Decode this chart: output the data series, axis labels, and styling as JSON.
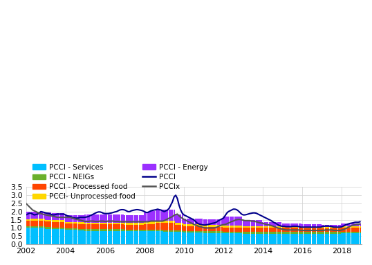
{
  "ylim": [
    0.0,
    3.5
  ],
  "yticks": [
    0.0,
    0.5,
    1.0,
    1.5,
    2.0,
    2.5,
    3.0,
    3.5
  ],
  "colors": {
    "services": "#00BFFF",
    "neigs": "#6AB02C",
    "processed_food": "#FF4500",
    "unprocessed_food": "#FFD700",
    "energy": "#9B30FF",
    "pcci": "#00008B",
    "pccix": "#555555"
  },
  "start_year": 2002,
  "end_year": 2018,
  "xtick_years": [
    2002,
    2004,
    2006,
    2008,
    2010,
    2012,
    2014,
    2016,
    2018
  ],
  "legend": {
    "services_label": "PCCI - Services",
    "neigs_label": "PCCI - NEIGs",
    "processed_food_label": "PCCI - Processed food",
    "unprocessed_food_label": "PCCI- Unprocessed food",
    "energy_label": "PCCI - Energy",
    "pcci_label": "PCCI",
    "pccix_label": "PCCIx"
  },
  "services": [
    1.0,
    1.0,
    1.0,
    1.0,
    1.0,
    1.0,
    1.0,
    1.0,
    1.0,
    1.0,
    1.0,
    1.0,
    0.95,
    0.95,
    0.95,
    0.95,
    0.92,
    0.92,
    0.92,
    0.92,
    0.92,
    0.92,
    0.92,
    0.92,
    0.88,
    0.88,
    0.88,
    0.88,
    0.88,
    0.88,
    0.88,
    0.88,
    0.85,
    0.85,
    0.85,
    0.85,
    0.83,
    0.83,
    0.83,
    0.83,
    0.83,
    0.83,
    0.83,
    0.83,
    0.83,
    0.83,
    0.83,
    0.83,
    0.82,
    0.82,
    0.82,
    0.82,
    0.82,
    0.82,
    0.82,
    0.82,
    0.82,
    0.82,
    0.82,
    0.82,
    0.8,
    0.8,
    0.8,
    0.8,
    0.8,
    0.8,
    0.8,
    0.8,
    0.8,
    0.8,
    0.8,
    0.8,
    0.8,
    0.8,
    0.8,
    0.8,
    0.8,
    0.8,
    0.8,
    0.8,
    0.8,
    0.8,
    0.8,
    0.8,
    0.75,
    0.75,
    0.75,
    0.75,
    0.75,
    0.75,
    0.75,
    0.75,
    0.75,
    0.75,
    0.75,
    0.75,
    0.72,
    0.72,
    0.72,
    0.72,
    0.72,
    0.72,
    0.72,
    0.72,
    0.72,
    0.72,
    0.72,
    0.72,
    0.7,
    0.7,
    0.7,
    0.7,
    0.7,
    0.7,
    0.7,
    0.7,
    0.7,
    0.7,
    0.7,
    0.7,
    0.68,
    0.68,
    0.68,
    0.68,
    0.68,
    0.68,
    0.68,
    0.68,
    0.68,
    0.68,
    0.68,
    0.68,
    0.65,
    0.65,
    0.65,
    0.65,
    0.65,
    0.65,
    0.65,
    0.65,
    0.65,
    0.65,
    0.65,
    0.65,
    0.65,
    0.65,
    0.65,
    0.65,
    0.65,
    0.65,
    0.65,
    0.65,
    0.65,
    0.65,
    0.65,
    0.65,
    0.65,
    0.65,
    0.65,
    0.65,
    0.65,
    0.65,
    0.65,
    0.65,
    0.65,
    0.65,
    0.65,
    0.65,
    0.65,
    0.65,
    0.65,
    0.65,
    0.65,
    0.65,
    0.65,
    0.65,
    0.65,
    0.65,
    0.65,
    0.65,
    0.65,
    0.65,
    0.65,
    0.65,
    0.65,
    0.65,
    0.65,
    0.65,
    0.65,
    0.65,
    0.65,
    0.65,
    0.68,
    0.68,
    0.68,
    0.68,
    0.68,
    0.68,
    0.68,
    0.68,
    0.68,
    0.68,
    0.68,
    0.68,
    0.68,
    0.68,
    0.68,
    0.68,
    0.68,
    0.68,
    0.68,
    0.68,
    0.68,
    0.68,
    0.68,
    0.68
  ],
  "neigs": [
    0.1,
    0.1,
    0.1,
    0.1,
    0.1,
    0.1,
    0.1,
    0.1,
    0.1,
    0.1,
    0.1,
    0.1,
    0.1,
    0.1,
    0.1,
    0.1,
    0.1,
    0.1,
    0.1,
    0.1,
    0.1,
    0.1,
    0.1,
    0.1,
    0.1,
    0.1,
    0.1,
    0.1,
    0.1,
    0.1,
    0.1,
    0.1,
    0.1,
    0.1,
    0.1,
    0.1,
    0.1,
    0.1,
    0.1,
    0.1,
    0.1,
    0.1,
    0.1,
    0.1,
    0.1,
    0.1,
    0.1,
    0.1,
    0.1,
    0.1,
    0.1,
    0.1,
    0.1,
    0.1,
    0.1,
    0.1,
    0.1,
    0.1,
    0.1,
    0.1,
    0.1,
    0.1,
    0.1,
    0.1,
    0.1,
    0.1,
    0.1,
    0.1,
    0.1,
    0.1,
    0.1,
    0.1,
    0.1,
    0.1,
    0.1,
    0.1,
    0.1,
    0.1,
    0.1,
    0.1,
    0.1,
    0.1,
    0.1,
    0.1,
    0.1,
    0.1,
    0.1,
    0.1,
    0.1,
    0.1,
    0.1,
    0.1,
    0.1,
    0.1,
    0.1,
    0.1,
    0.1,
    0.1,
    0.1,
    0.1,
    0.1,
    0.1,
    0.1,
    0.1,
    0.1,
    0.1,
    0.1,
    0.1,
    0.1,
    0.1,
    0.1,
    0.1,
    0.1,
    0.1,
    0.1,
    0.1,
    0.1,
    0.1,
    0.1,
    0.1,
    0.1,
    0.1,
    0.1,
    0.1,
    0.1,
    0.1,
    0.1,
    0.1,
    0.1,
    0.1,
    0.1,
    0.1,
    0.1,
    0.1,
    0.1,
    0.1,
    0.1,
    0.1,
    0.1,
    0.1,
    0.1,
    0.1,
    0.1,
    0.1,
    0.1,
    0.1,
    0.1,
    0.1,
    0.1,
    0.1,
    0.1,
    0.1,
    0.1,
    0.1,
    0.1,
    0.1,
    0.1,
    0.1,
    0.1,
    0.1,
    0.1,
    0.1,
    0.1,
    0.1,
    0.1,
    0.1,
    0.1,
    0.1,
    0.1,
    0.1,
    0.1,
    0.1,
    0.1,
    0.1,
    0.1,
    0.1,
    0.1,
    0.1,
    0.1,
    0.1,
    0.1,
    0.1,
    0.1,
    0.1,
    0.1,
    0.1,
    0.1,
    0.1,
    0.1,
    0.1,
    0.1,
    0.1,
    0.1,
    0.1,
    0.1,
    0.1,
    0.1,
    0.1,
    0.1,
    0.1,
    0.1,
    0.1,
    0.1,
    0.1,
    0.1,
    0.1,
    0.1,
    0.1,
    0.1,
    0.1,
    0.1,
    0.1,
    0.1,
    0.1,
    0.1,
    0.1
  ],
  "processed_food": [
    0.35,
    0.35,
    0.35,
    0.35,
    0.35,
    0.35,
    0.35,
    0.35,
    0.35,
    0.35,
    0.35,
    0.35,
    0.35,
    0.35,
    0.35,
    0.35,
    0.35,
    0.35,
    0.35,
    0.35,
    0.35,
    0.35,
    0.35,
    0.35,
    0.3,
    0.3,
    0.3,
    0.3,
    0.3,
    0.3,
    0.3,
    0.3,
    0.3,
    0.3,
    0.3,
    0.3,
    0.3,
    0.3,
    0.3,
    0.3,
    0.3,
    0.3,
    0.3,
    0.3,
    0.3,
    0.3,
    0.3,
    0.3,
    0.3,
    0.3,
    0.3,
    0.3,
    0.3,
    0.3,
    0.3,
    0.3,
    0.3,
    0.3,
    0.3,
    0.3,
    0.3,
    0.3,
    0.3,
    0.3,
    0.3,
    0.3,
    0.3,
    0.3,
    0.3,
    0.3,
    0.3,
    0.3,
    0.35,
    0.35,
    0.35,
    0.35,
    0.35,
    0.35,
    0.35,
    0.4,
    0.4,
    0.4,
    0.4,
    0.4,
    0.45,
    0.45,
    0.45,
    0.45,
    0.45,
    0.45,
    0.45,
    0.35,
    0.35,
    0.35,
    0.35,
    0.35,
    0.3,
    0.3,
    0.3,
    0.3,
    0.3,
    0.3,
    0.3,
    0.3,
    0.3,
    0.3,
    0.3,
    0.3,
    0.28,
    0.28,
    0.28,
    0.28,
    0.28,
    0.28,
    0.28,
    0.28,
    0.28,
    0.28,
    0.28,
    0.28,
    0.25,
    0.25,
    0.25,
    0.25,
    0.25,
    0.25,
    0.25,
    0.25,
    0.25,
    0.25,
    0.25,
    0.25,
    0.25,
    0.25,
    0.25,
    0.25,
    0.25,
    0.25,
    0.25,
    0.25,
    0.25,
    0.25,
    0.25,
    0.25,
    0.25,
    0.25,
    0.25,
    0.25,
    0.25,
    0.25,
    0.25,
    0.25,
    0.25,
    0.25,
    0.25,
    0.25,
    0.25,
    0.25,
    0.25,
    0.25,
    0.25,
    0.25,
    0.25,
    0.25,
    0.25,
    0.25,
    0.25,
    0.25,
    0.22,
    0.22,
    0.22,
    0.22,
    0.22,
    0.22,
    0.22,
    0.22,
    0.22,
    0.22,
    0.22,
    0.22,
    0.22,
    0.22,
    0.22,
    0.22,
    0.22,
    0.22,
    0.22,
    0.22,
    0.22,
    0.22,
    0.22,
    0.22,
    0.22,
    0.22,
    0.22,
    0.22,
    0.22,
    0.22,
    0.22,
    0.22,
    0.22,
    0.22,
    0.22,
    0.22,
    0.22,
    0.22,
    0.22,
    0.22,
    0.22,
    0.22,
    0.22,
    0.22,
    0.22,
    0.22,
    0.22,
    0.22
  ],
  "unprocessed_food": [
    0.08,
    0.08,
    0.08,
    0.1,
    0.1,
    0.1,
    0.1,
    0.1,
    0.1,
    0.1,
    0.1,
    0.1,
    0.1,
    0.1,
    0.1,
    0.1,
    0.1,
    0.1,
    0.1,
    0.1,
    0.1,
    0.1,
    0.1,
    0.1,
    0.1,
    0.1,
    0.1,
    0.1,
    0.1,
    0.1,
    0.1,
    0.1,
    0.1,
    0.1,
    0.1,
    0.1,
    0.1,
    0.1,
    0.1,
    0.1,
    0.1,
    0.1,
    0.1,
    0.1,
    0.1,
    0.1,
    0.1,
    0.1,
    0.1,
    0.1,
    0.1,
    0.1,
    0.1,
    0.1,
    0.1,
    0.1,
    0.1,
    0.1,
    0.1,
    0.1,
    0.1,
    0.1,
    0.1,
    0.1,
    0.1,
    0.1,
    0.1,
    0.1,
    0.1,
    0.1,
    0.1,
    0.1,
    0.1,
    0.1,
    0.1,
    0.15,
    0.15,
    0.15,
    0.15,
    0.15,
    0.15,
    0.15,
    0.15,
    0.15,
    0.15,
    0.15,
    0.15,
    0.15,
    0.15,
    0.15,
    0.15,
    0.12,
    0.12,
    0.12,
    0.12,
    0.12,
    0.1,
    0.1,
    0.1,
    0.1,
    0.1,
    0.1,
    0.1,
    0.1,
    0.1,
    0.1,
    0.1,
    0.1,
    0.1,
    0.1,
    0.1,
    0.1,
    0.1,
    0.1,
    0.1,
    0.1,
    0.1,
    0.1,
    0.1,
    0.1,
    0.1,
    0.1,
    0.1,
    0.1,
    0.1,
    0.1,
    0.1,
    0.1,
    0.1,
    0.1,
    0.1,
    0.1,
    0.1,
    0.1,
    0.1,
    0.1,
    0.1,
    0.1,
    0.1,
    0.1,
    0.1,
    0.1,
    0.1,
    0.1,
    0.1,
    0.1,
    0.1,
    0.1,
    0.1,
    0.1,
    0.1,
    0.1,
    0.1,
    0.1,
    0.1,
    0.1,
    0.1,
    0.1,
    0.1,
    0.1,
    0.1,
    0.1,
    0.1,
    0.1,
    0.1,
    0.1,
    0.1,
    0.1,
    0.1,
    0.1,
    0.1,
    0.1,
    0.1,
    0.1,
    0.1,
    0.1,
    0.1,
    0.1,
    0.1,
    0.1,
    0.1,
    0.1,
    0.1,
    0.1,
    0.1,
    0.1,
    0.1,
    0.1,
    0.1,
    0.1,
    0.1,
    0.1,
    0.1,
    0.1,
    0.1,
    0.1,
    0.1,
    0.1,
    0.1,
    0.1,
    0.1,
    0.1,
    0.1,
    0.1,
    0.1,
    0.1,
    0.1,
    0.1,
    0.1,
    0.1,
    0.1,
    0.1,
    0.1,
    0.1,
    0.1,
    0.1
  ],
  "energy": [
    0.45,
    0.45,
    0.45,
    0.45,
    0.45,
    0.45,
    0.45,
    0.45,
    0.45,
    0.45,
    0.45,
    0.45,
    0.45,
    0.45,
    0.45,
    0.45,
    0.45,
    0.45,
    0.45,
    0.45,
    0.45,
    0.45,
    0.45,
    0.45,
    0.42,
    0.42,
    0.42,
    0.42,
    0.42,
    0.42,
    0.42,
    0.42,
    0.42,
    0.42,
    0.42,
    0.42,
    0.5,
    0.5,
    0.5,
    0.5,
    0.5,
    0.5,
    0.5,
    0.5,
    0.5,
    0.5,
    0.5,
    0.5,
    0.5,
    0.5,
    0.5,
    0.5,
    0.5,
    0.5,
    0.5,
    0.5,
    0.5,
    0.5,
    0.5,
    0.5,
    0.5,
    0.5,
    0.5,
    0.5,
    0.5,
    0.5,
    0.5,
    0.5,
    0.5,
    0.5,
    0.5,
    0.5,
    0.6,
    0.6,
    0.6,
    0.6,
    0.65,
    0.65,
    0.65,
    0.65,
    0.65,
    0.65,
    0.65,
    0.65,
    0.65,
    0.65,
    0.65,
    0.65,
    0.65,
    0.65,
    0.65,
    0.5,
    0.5,
    0.5,
    0.5,
    0.5,
    0.35,
    0.35,
    0.35,
    0.35,
    0.35,
    0.35,
    0.35,
    0.35,
    0.35,
    0.35,
    0.35,
    0.35,
    0.35,
    0.35,
    0.35,
    0.35,
    0.35,
    0.35,
    0.35,
    0.35,
    0.35,
    0.35,
    0.35,
    0.35,
    0.55,
    0.55,
    0.55,
    0.55,
    0.55,
    0.55,
    0.55,
    0.55,
    0.55,
    0.55,
    0.55,
    0.55,
    0.4,
    0.4,
    0.4,
    0.4,
    0.4,
    0.4,
    0.4,
    0.4,
    0.4,
    0.4,
    0.4,
    0.4,
    0.25,
    0.25,
    0.25,
    0.25,
    0.25,
    0.25,
    0.25,
    0.25,
    0.25,
    0.25,
    0.25,
    0.25,
    0.18,
    0.18,
    0.18,
    0.18,
    0.18,
    0.18,
    0.18,
    0.18,
    0.18,
    0.18,
    0.18,
    0.18,
    0.18,
    0.18,
    0.18,
    0.18,
    0.18,
    0.18,
    0.18,
    0.18,
    0.18,
    0.18,
    0.18,
    0.18,
    0.12,
    0.12,
    0.12,
    0.12,
    0.12,
    0.12,
    0.12,
    0.12,
    0.12,
    0.12,
    0.12,
    0.12,
    0.18,
    0.18,
    0.18,
    0.18,
    0.18,
    0.18,
    0.18,
    0.18,
    0.18,
    0.18,
    0.18,
    0.18,
    0.22,
    0.22,
    0.22,
    0.22,
    0.22,
    0.22,
    0.22,
    0.22,
    0.22,
    0.22,
    0.22,
    0.22
  ],
  "pcci": [
    1.8,
    1.85,
    1.9,
    1.9,
    1.85,
    1.8,
    1.82,
    1.85,
    1.9,
    2.0,
    1.98,
    1.95,
    1.92,
    1.9,
    1.88,
    1.85,
    1.8,
    1.8,
    1.82,
    1.85,
    1.85,
    1.85,
    1.85,
    1.85,
    1.8,
    1.75,
    1.72,
    1.7,
    1.65,
    1.62,
    1.6,
    1.6,
    1.62,
    1.65,
    1.65,
    1.65,
    1.65,
    1.68,
    1.7,
    1.75,
    1.8,
    1.85,
    1.9,
    1.95,
    1.98,
    1.98,
    1.95,
    1.9,
    1.88,
    1.88,
    1.88,
    1.9,
    1.92,
    1.95,
    1.98,
    2.0,
    2.05,
    2.1,
    2.12,
    2.12,
    2.1,
    2.05,
    2.0,
    2.0,
    2.05,
    2.08,
    2.1,
    2.12,
    2.12,
    2.1,
    2.08,
    2.05,
    2.0,
    1.95,
    1.95,
    2.0,
    2.05,
    2.08,
    2.1,
    2.12,
    2.15,
    2.12,
    2.1,
    2.05,
    2.0,
    2.05,
    2.1,
    2.2,
    2.4,
    2.6,
    2.9,
    3.0,
    2.8,
    2.4,
    2.1,
    1.9,
    1.8,
    1.75,
    1.7,
    1.65,
    1.6,
    1.55,
    1.5,
    1.4,
    1.3,
    1.25,
    1.22,
    1.2,
    1.18,
    1.18,
    1.2,
    1.22,
    1.25,
    1.28,
    1.3,
    1.32,
    1.38,
    1.45,
    1.5,
    1.55,
    1.6,
    1.75,
    1.9,
    2.0,
    2.05,
    2.1,
    2.15,
    2.15,
    2.12,
    2.05,
    1.95,
    1.85,
    1.8,
    1.8,
    1.82,
    1.85,
    1.88,
    1.9,
    1.92,
    1.92,
    1.9,
    1.85,
    1.8,
    1.75,
    1.7,
    1.65,
    1.6,
    1.55,
    1.5,
    1.45,
    1.38,
    1.32,
    1.28,
    1.2,
    1.15,
    1.12,
    1.1,
    1.1,
    1.08,
    1.08,
    1.08,
    1.08,
    1.1,
    1.1,
    1.1,
    1.1,
    1.08,
    1.05,
    1.05,
    1.05,
    1.05,
    1.05,
    1.05,
    1.05,
    1.05,
    1.05,
    1.05,
    1.05,
    1.05,
    1.05,
    1.08,
    1.1,
    1.12,
    1.12,
    1.12,
    1.1,
    1.08,
    1.05,
    1.05,
    1.05,
    1.05,
    1.05,
    1.08,
    1.12,
    1.18,
    1.22,
    1.25,
    1.28,
    1.3,
    1.32,
    1.35,
    1.35,
    1.35,
    1.38,
    1.38,
    1.38,
    1.35,
    1.32,
    1.3,
    1.28,
    1.28,
    1.3,
    1.32,
    1.35,
    1.38,
    1.4
  ],
  "pccix": [
    2.5,
    2.4,
    2.3,
    2.2,
    2.1,
    2.05,
    2.0,
    1.95,
    1.9,
    1.88,
    1.85,
    1.82,
    1.8,
    1.78,
    1.76,
    1.75,
    1.72,
    1.7,
    1.68,
    1.65,
    1.65,
    1.65,
    1.65,
    1.65,
    1.65,
    1.65,
    1.65,
    1.65,
    1.6,
    1.58,
    1.55,
    1.52,
    1.5,
    1.48,
    1.45,
    1.42,
    1.4,
    1.4,
    1.4,
    1.42,
    1.42,
    1.42,
    1.4,
    1.4,
    1.4,
    1.42,
    1.42,
    1.42,
    1.4,
    1.4,
    1.42,
    1.42,
    1.42,
    1.42,
    1.4,
    1.4,
    1.4,
    1.38,
    1.38,
    1.38,
    1.38,
    1.38,
    1.38,
    1.38,
    1.38,
    1.38,
    1.38,
    1.38,
    1.38,
    1.38,
    1.38,
    1.38,
    1.38,
    1.38,
    1.38,
    1.4,
    1.42,
    1.42,
    1.42,
    1.42,
    1.42,
    1.42,
    1.42,
    1.42,
    1.45,
    1.5,
    1.55,
    1.6,
    1.65,
    1.7,
    1.78,
    1.82,
    1.85,
    1.75,
    1.65,
    1.6,
    1.52,
    1.48,
    1.42,
    1.38,
    1.32,
    1.28,
    1.22,
    1.18,
    1.15,
    1.1,
    1.08,
    1.05,
    1.02,
    1.0,
    1.0,
    1.0,
    1.0,
    1.0,
    1.0,
    1.02,
    1.05,
    1.1,
    1.15,
    1.18,
    1.2,
    1.22,
    1.25,
    1.3,
    1.35,
    1.4,
    1.42,
    1.48,
    1.5,
    1.52,
    1.52,
    1.5,
    1.48,
    1.45,
    1.45,
    1.45,
    1.45,
    1.42,
    1.42,
    1.4,
    1.38,
    1.35,
    1.32,
    1.3,
    1.28,
    1.25,
    1.22,
    1.2,
    1.18,
    1.15,
    1.12,
    1.08,
    1.05,
    1.0,
    0.98,
    0.95,
    0.92,
    0.9,
    0.88,
    0.88,
    0.88,
    0.88,
    0.88,
    0.88,
    0.88,
    0.88,
    0.88,
    0.85,
    0.85,
    0.85,
    0.85,
    0.85,
    0.85,
    0.85,
    0.85,
    0.85,
    0.85,
    0.85,
    0.85,
    0.85,
    0.85,
    0.85,
    0.88,
    0.88,
    0.88,
    0.88,
    0.88,
    0.85,
    0.85,
    0.85,
    0.85,
    0.85,
    0.88,
    0.9,
    0.95,
    1.0,
    1.05,
    1.1,
    1.15,
    1.18,
    1.2,
    1.22,
    1.22,
    1.25,
    1.25,
    1.25,
    1.25,
    1.22,
    1.2,
    1.18,
    1.18,
    1.2,
    1.22,
    1.25,
    1.28,
    1.3
  ]
}
